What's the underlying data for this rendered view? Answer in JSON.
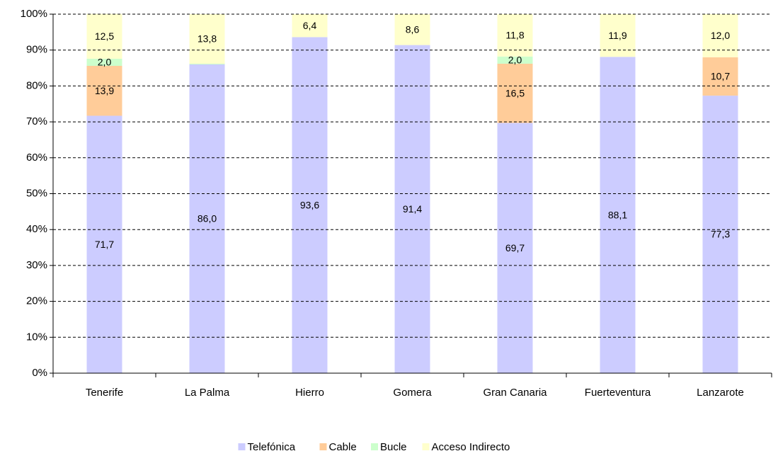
{
  "chart_data": {
    "type": "stacked_bar",
    "categories": [
      "Tenerife",
      "La Palma",
      "Hierro",
      "Gomera",
      "Gran Canaria",
      "Fuerteventura",
      "Lanzarote"
    ],
    "series": [
      {
        "name": "Telefónica",
        "color": "#ccccff",
        "values": [
          71.7,
          86.0,
          93.6,
          91.4,
          69.7,
          88.1,
          77.3
        ],
        "value_labels": [
          "71,7",
          "86,0",
          "93,6",
          "91,4",
          "69,7",
          "88,1",
          "77,3"
        ]
      },
      {
        "name": "Cable",
        "color": "#ffcc99",
        "values": [
          13.9,
          0,
          0,
          0,
          16.5,
          0,
          10.7
        ],
        "value_labels": [
          "13,9",
          null,
          null,
          null,
          "16,5",
          null,
          "10,7"
        ]
      },
      {
        "name": "Bucle",
        "color": "#ccffcc",
        "values": [
          2.0,
          0.2,
          0,
          0,
          2.0,
          0,
          0
        ],
        "value_labels": [
          "2,0",
          null,
          null,
          null,
          "2,0",
          null,
          null
        ]
      },
      {
        "name": "Acceso Indirecto",
        "color": "#ffffcc",
        "values": [
          12.5,
          13.8,
          6.4,
          8.6,
          11.8,
          11.9,
          12.0
        ],
        "value_labels": [
          "12,5",
          "13,8",
          "6,4",
          "8,6",
          "11,8",
          "11,9",
          "12,0"
        ]
      }
    ],
    "ylim": [
      0,
      100
    ],
    "yticks": [
      {
        "value": 0,
        "label": "0%"
      },
      {
        "value": 10,
        "label": "10%"
      },
      {
        "value": 20,
        "label": "20%"
      },
      {
        "value": 30,
        "label": "30%"
      },
      {
        "value": 40,
        "label": "40%"
      },
      {
        "value": 50,
        "label": "50%"
      },
      {
        "value": 60,
        "label": "60%"
      },
      {
        "value": 70,
        "label": "70%"
      },
      {
        "value": 80,
        "label": "80%"
      },
      {
        "value": 90,
        "label": "90%"
      },
      {
        "value": 100,
        "label": "100%"
      }
    ],
    "grid": true,
    "legend": "bottom"
  }
}
